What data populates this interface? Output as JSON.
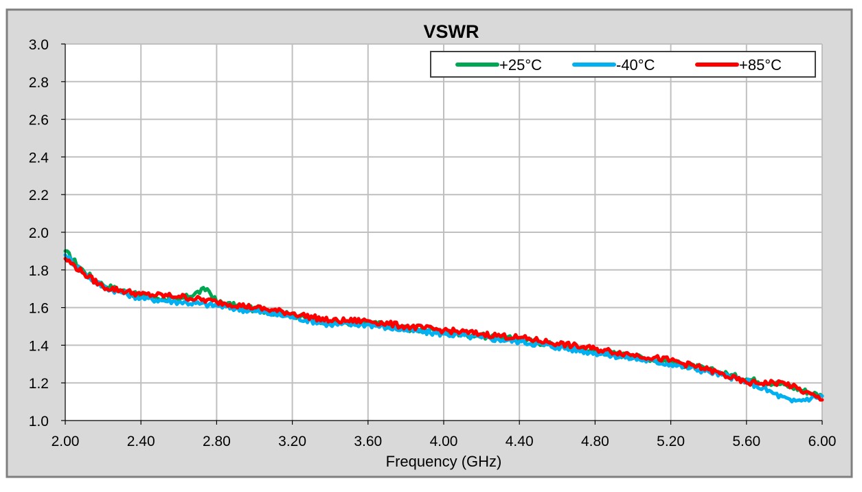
{
  "chart_data": {
    "type": "line",
    "title": "VSWR",
    "xlabel": "Frequency (GHz)",
    "ylabel": "",
    "xlim": [
      2.0,
      6.0
    ],
    "ylim": [
      1.0,
      3.0
    ],
    "x_ticks": [
      "2.00",
      "2.40",
      "2.80",
      "3.20",
      "3.60",
      "4.00",
      "4.40",
      "4.80",
      "5.20",
      "5.60",
      "6.00"
    ],
    "y_ticks": [
      "1.0",
      "1.2",
      "1.4",
      "1.6",
      "1.8",
      "2.0",
      "2.2",
      "2.4",
      "2.6",
      "2.8",
      "3.0"
    ],
    "grid": true,
    "legend_position": "top-right",
    "series": [
      {
        "name": "+25°C",
        "color": "#00a651",
        "x": [
          2.0,
          2.1,
          2.2,
          2.4,
          2.6,
          2.75,
          2.8,
          3.0,
          3.2,
          3.4,
          3.6,
          3.8,
          4.0,
          4.2,
          4.4,
          4.6,
          4.8,
          5.0,
          5.2,
          5.4,
          5.6,
          5.8,
          6.0
        ],
        "y": [
          1.9,
          1.79,
          1.72,
          1.66,
          1.64,
          1.7,
          1.63,
          1.59,
          1.56,
          1.52,
          1.52,
          1.49,
          1.47,
          1.45,
          1.43,
          1.4,
          1.37,
          1.34,
          1.31,
          1.27,
          1.22,
          1.19,
          1.13
        ]
      },
      {
        "name": "-40°C",
        "color": "#00b0f0",
        "x": [
          2.0,
          2.1,
          2.2,
          2.4,
          2.6,
          2.8,
          3.0,
          3.2,
          3.4,
          3.6,
          3.8,
          4.0,
          4.2,
          4.4,
          4.6,
          4.8,
          5.0,
          5.2,
          5.4,
          5.6,
          5.84,
          6.0
        ],
        "y": [
          1.88,
          1.78,
          1.71,
          1.65,
          1.63,
          1.61,
          1.58,
          1.55,
          1.51,
          1.51,
          1.48,
          1.46,
          1.44,
          1.42,
          1.39,
          1.36,
          1.33,
          1.3,
          1.26,
          1.21,
          1.1,
          1.13
        ]
      },
      {
        "name": "+85°C",
        "color": "#ff0000",
        "x": [
          2.0,
          2.1,
          2.2,
          2.4,
          2.6,
          2.8,
          3.0,
          3.2,
          3.4,
          3.6,
          3.8,
          4.0,
          4.2,
          4.4,
          4.6,
          4.8,
          5.0,
          5.2,
          5.4,
          5.6,
          5.8,
          6.0
        ],
        "y": [
          1.86,
          1.78,
          1.71,
          1.67,
          1.66,
          1.63,
          1.6,
          1.57,
          1.53,
          1.53,
          1.5,
          1.48,
          1.46,
          1.44,
          1.41,
          1.38,
          1.35,
          1.32,
          1.27,
          1.2,
          1.2,
          1.11
        ]
      }
    ]
  }
}
